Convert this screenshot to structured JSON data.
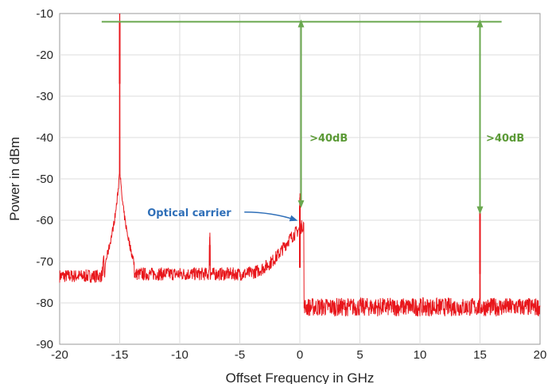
{
  "chart_data": {
    "type": "line",
    "title": "",
    "xlabel": "Offset Frequency in GHz",
    "ylabel": "Power in dBm",
    "xlim": [
      -20,
      20
    ],
    "ylim": [
      -90,
      -10
    ],
    "xticks": [
      -20,
      -15,
      -10,
      -5,
      0,
      5,
      10,
      15,
      20
    ],
    "yticks": [
      -90,
      -80,
      -70,
      -60,
      -50,
      -40,
      -30,
      -20,
      -10
    ],
    "grid": true,
    "colors": {
      "trace": "#e8161b",
      "reference": "#6aa84f",
      "arrow": "#6aa84f",
      "label": "#2f6fb8"
    },
    "series": [
      {
        "noise_floor": [
          {
            "from": -20,
            "to": -16.5,
            "level": -73
          },
          {
            "from": -16.5,
            "to": -1,
            "level": -73
          },
          {
            "from": 0.4,
            "to": 20,
            "level": -81
          }
        ],
        "peaks": [
          {
            "x": -15,
            "y": -12
          },
          {
            "x": -7.5,
            "y": -66
          },
          {
            "x": 0,
            "y": -56.5
          },
          {
            "x": 15,
            "y": -58
          }
        ]
      }
    ],
    "reference_line": {
      "y": -12,
      "x_from": -16.5,
      "x_to": 16.8
    },
    "annotations": [
      {
        "text": ">40dB",
        "x": 0.1,
        "y_from": -12,
        "y_to": -56.5,
        "label_x": 0.8,
        "label_y": -41
      },
      {
        "text": ">40dB",
        "x": 15,
        "y_from": -12,
        "y_to": -58,
        "label_x": 15.5,
        "label_y": -41
      },
      {
        "text": "Optical carrier",
        "label_x": -12.7,
        "label_y": -59,
        "arrow_to_x": -0.3,
        "arrow_to_y": -60
      }
    ]
  }
}
